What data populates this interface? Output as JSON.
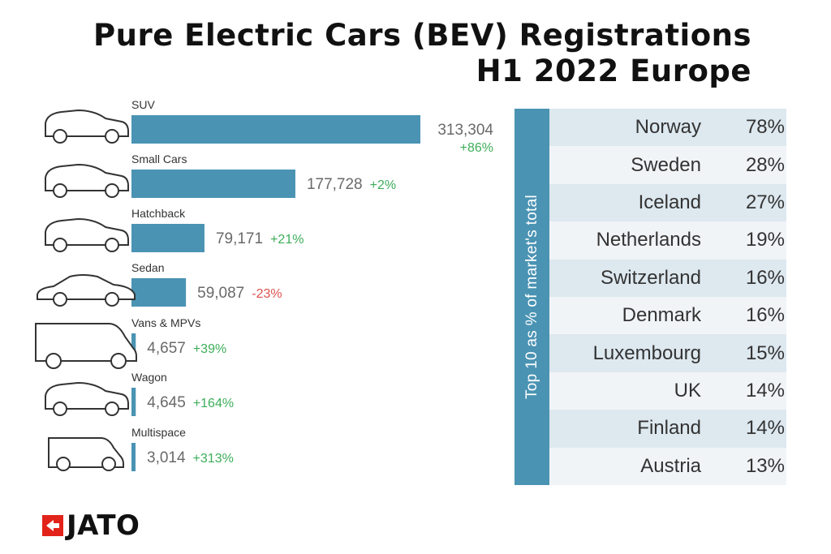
{
  "title": {
    "line1": "Pure Electric Cars (BEV) Registrations",
    "line2": "H1 2022 Europe"
  },
  "chart_data": [
    {
      "type": "bar",
      "orientation": "horizontal",
      "categories": [
        "SUV",
        "Small Cars",
        "Hatchback",
        "Sedan",
        "Vans & MPVs",
        "Wagon",
        "Multispace"
      ],
      "values": [
        313304,
        177728,
        79171,
        59087,
        4657,
        4645,
        3014
      ],
      "value_labels": [
        "313,304",
        "177,728",
        "79,171",
        "59,087",
        "4,657",
        "4,645",
        "3,014"
      ],
      "changes": [
        "+86%",
        "+2%",
        "+21%",
        "-23%",
        "+39%",
        "+164%",
        "+313%"
      ],
      "icons": [
        "suv-icon",
        "small-car-icon",
        "hatchback-icon",
        "sedan-icon",
        "van-icon",
        "wagon-icon",
        "multispace-icon"
      ],
      "bar_color": "#4a93b3",
      "positive_color": "#3dae5a",
      "negative_color": "#d9534f"
    },
    {
      "type": "table",
      "side_label": "Top 10 as % of market's total",
      "rows": [
        {
          "country": "Norway",
          "pct": "78%"
        },
        {
          "country": "Sweden",
          "pct": "28%"
        },
        {
          "country": "Iceland",
          "pct": "27%"
        },
        {
          "country": "Netherlands",
          "pct": "19%"
        },
        {
          "country": "Switzerland",
          "pct": "16%"
        },
        {
          "country": "Denmark",
          "pct": "16%"
        },
        {
          "country": "Luxembourg",
          "pct": "15%"
        },
        {
          "country": "UK",
          "pct": "14%"
        },
        {
          "country": "Finland",
          "pct": "14%"
        },
        {
          "country": "Austria",
          "pct": "13%"
        }
      ]
    }
  ],
  "logo": {
    "text": "JATO",
    "color": "#e2231a"
  }
}
